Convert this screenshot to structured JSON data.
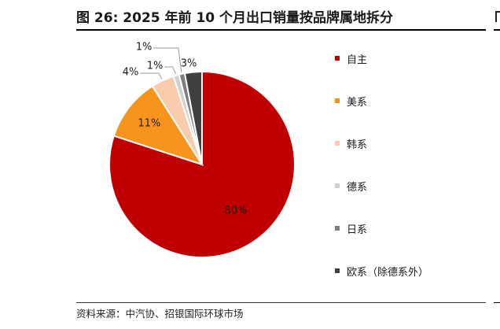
{
  "figure": {
    "title": "图 26: 2025 年前 10 个月出口销量按品牌属地拆分",
    "source": "资料来源：中汽协、招银国际环球市场"
  },
  "chart_data": {
    "type": "pie",
    "title": "",
    "legend_position": "right",
    "series": [
      {
        "name": "自主",
        "value": 80,
        "label": "80%",
        "color": "#C00000"
      },
      {
        "name": "美系",
        "value": 11,
        "label": "11%",
        "color": "#F7941D"
      },
      {
        "name": "韩系",
        "value": 4,
        "label": "4%",
        "color": "#F8CBAD"
      },
      {
        "name": "德系",
        "value": 1,
        "label": "1%",
        "color": "#D0D0D0"
      },
      {
        "name": "日系",
        "value": 1,
        "label": "1%",
        "color": "#7F7F7F"
      },
      {
        "name": "欧系（除德系外）",
        "value": 3,
        "label": "3%",
        "color": "#404040"
      }
    ]
  }
}
